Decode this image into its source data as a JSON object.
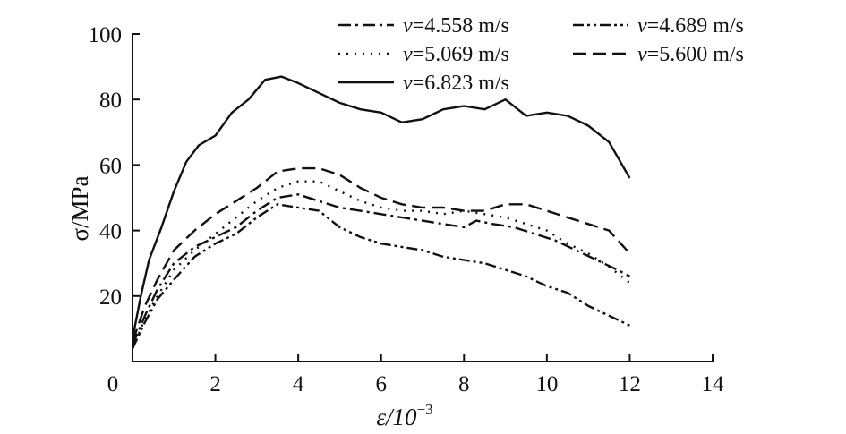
{
  "chart_data": {
    "type": "line",
    "title": "",
    "xlabel": "ε/10",
    "xlabel_exponent": "−3",
    "ylabel": "σ/MPa",
    "xlim": [
      0,
      14
    ],
    "ylim": [
      0,
      100
    ],
    "x_ticks": [
      "0",
      "2",
      "4",
      "6",
      "8",
      "10",
      "12",
      "14"
    ],
    "y_ticks": [
      "20",
      "40",
      "60",
      "80",
      "100"
    ],
    "grid": false,
    "legend_position": "top-right",
    "series": [
      {
        "name": "=4.558 m/s",
        "symbol": "v",
        "dash": "dash-dot",
        "points": [
          [
            0,
            5
          ],
          [
            0.3,
            14
          ],
          [
            0.6,
            22
          ],
          [
            1.0,
            30
          ],
          [
            1.5,
            35
          ],
          [
            2.0,
            38
          ],
          [
            2.5,
            41
          ],
          [
            3.0,
            46
          ],
          [
            3.5,
            50
          ],
          [
            4.0,
            51
          ],
          [
            4.5,
            49
          ],
          [
            5.0,
            47
          ],
          [
            5.5,
            46
          ],
          [
            6.0,
            45
          ],
          [
            6.5,
            44
          ],
          [
            7.0,
            43
          ],
          [
            7.5,
            42
          ],
          [
            8.0,
            41
          ],
          [
            8.3,
            43
          ],
          [
            8.7,
            42
          ],
          [
            9.2,
            41
          ],
          [
            9.7,
            39
          ],
          [
            10.2,
            37
          ],
          [
            10.7,
            34
          ],
          [
            11.2,
            31
          ],
          [
            11.7,
            28
          ],
          [
            12.0,
            26
          ]
        ]
      },
      {
        "name": "=4.689 m/s",
        "symbol": "v",
        "dash": "dash-dot-dot",
        "points": [
          [
            0,
            4
          ],
          [
            0.3,
            12
          ],
          [
            0.6,
            19
          ],
          [
            1.0,
            25
          ],
          [
            1.5,
            32
          ],
          [
            2.0,
            36
          ],
          [
            2.5,
            39
          ],
          [
            3.0,
            44
          ],
          [
            3.5,
            48
          ],
          [
            4.0,
            47
          ],
          [
            4.5,
            46
          ],
          [
            5.0,
            41
          ],
          [
            5.5,
            38
          ],
          [
            6.0,
            36
          ],
          [
            6.5,
            35
          ],
          [
            7.0,
            34
          ],
          [
            7.5,
            32
          ],
          [
            8.0,
            31
          ],
          [
            8.5,
            30
          ],
          [
            9.0,
            28
          ],
          [
            9.5,
            26
          ],
          [
            10.0,
            23
          ],
          [
            10.5,
            21
          ],
          [
            11.0,
            17
          ],
          [
            11.5,
            14
          ],
          [
            12.0,
            11
          ]
        ]
      },
      {
        "name": "=5.069 m/s",
        "symbol": "v",
        "dash": "dotted",
        "points": [
          [
            0,
            4
          ],
          [
            0.3,
            13
          ],
          [
            0.6,
            20
          ],
          [
            1.0,
            28
          ],
          [
            1.5,
            34
          ],
          [
            2.0,
            39
          ],
          [
            2.5,
            44
          ],
          [
            3.0,
            49
          ],
          [
            3.5,
            53
          ],
          [
            4.0,
            55
          ],
          [
            4.5,
            55
          ],
          [
            5.0,
            52
          ],
          [
            5.5,
            49
          ],
          [
            6.0,
            47
          ],
          [
            6.5,
            46
          ],
          [
            7.0,
            46
          ],
          [
            7.5,
            45
          ],
          [
            8.0,
            46
          ],
          [
            8.5,
            45
          ],
          [
            9.0,
            44
          ],
          [
            9.5,
            42
          ],
          [
            10.0,
            40
          ],
          [
            10.5,
            36
          ],
          [
            11.0,
            33
          ],
          [
            11.5,
            29
          ],
          [
            12.0,
            24
          ]
        ]
      },
      {
        "name": "=5.600 m/s",
        "symbol": "v",
        "dash": "dashed",
        "points": [
          [
            0,
            6
          ],
          [
            0.3,
            17
          ],
          [
            0.6,
            25
          ],
          [
            1.0,
            34
          ],
          [
            1.5,
            40
          ],
          [
            2.0,
            45
          ],
          [
            2.5,
            49
          ],
          [
            3.0,
            53
          ],
          [
            3.5,
            58
          ],
          [
            4.0,
            59
          ],
          [
            4.5,
            59
          ],
          [
            5.0,
            57
          ],
          [
            5.5,
            53
          ],
          [
            6.0,
            50
          ],
          [
            6.5,
            48
          ],
          [
            7.0,
            47
          ],
          [
            7.5,
            47
          ],
          [
            8.0,
            46
          ],
          [
            8.5,
            46
          ],
          [
            9.0,
            48
          ],
          [
            9.5,
            48
          ],
          [
            10.0,
            46
          ],
          [
            10.5,
            44
          ],
          [
            11.0,
            42
          ],
          [
            11.5,
            40
          ],
          [
            12.0,
            33
          ]
        ]
      },
      {
        "name": "=6.823 m/s",
        "symbol": "v",
        "dash": "solid",
        "points": [
          [
            0,
            7
          ],
          [
            0.2,
            20
          ],
          [
            0.4,
            31
          ],
          [
            0.7,
            41
          ],
          [
            1.0,
            52
          ],
          [
            1.3,
            61
          ],
          [
            1.6,
            66
          ],
          [
            2.0,
            69
          ],
          [
            2.4,
            76
          ],
          [
            2.8,
            80
          ],
          [
            3.2,
            86
          ],
          [
            3.6,
            87
          ],
          [
            4.0,
            85
          ],
          [
            4.5,
            82
          ],
          [
            5.0,
            79
          ],
          [
            5.5,
            77
          ],
          [
            6.0,
            76
          ],
          [
            6.5,
            73
          ],
          [
            7.0,
            74
          ],
          [
            7.5,
            77
          ],
          [
            8.0,
            78
          ],
          [
            8.5,
            77
          ],
          [
            9.0,
            80
          ],
          [
            9.5,
            75
          ],
          [
            10.0,
            76
          ],
          [
            10.5,
            75
          ],
          [
            11.0,
            72
          ],
          [
            11.5,
            67
          ],
          [
            12.0,
            56
          ]
        ]
      }
    ]
  }
}
